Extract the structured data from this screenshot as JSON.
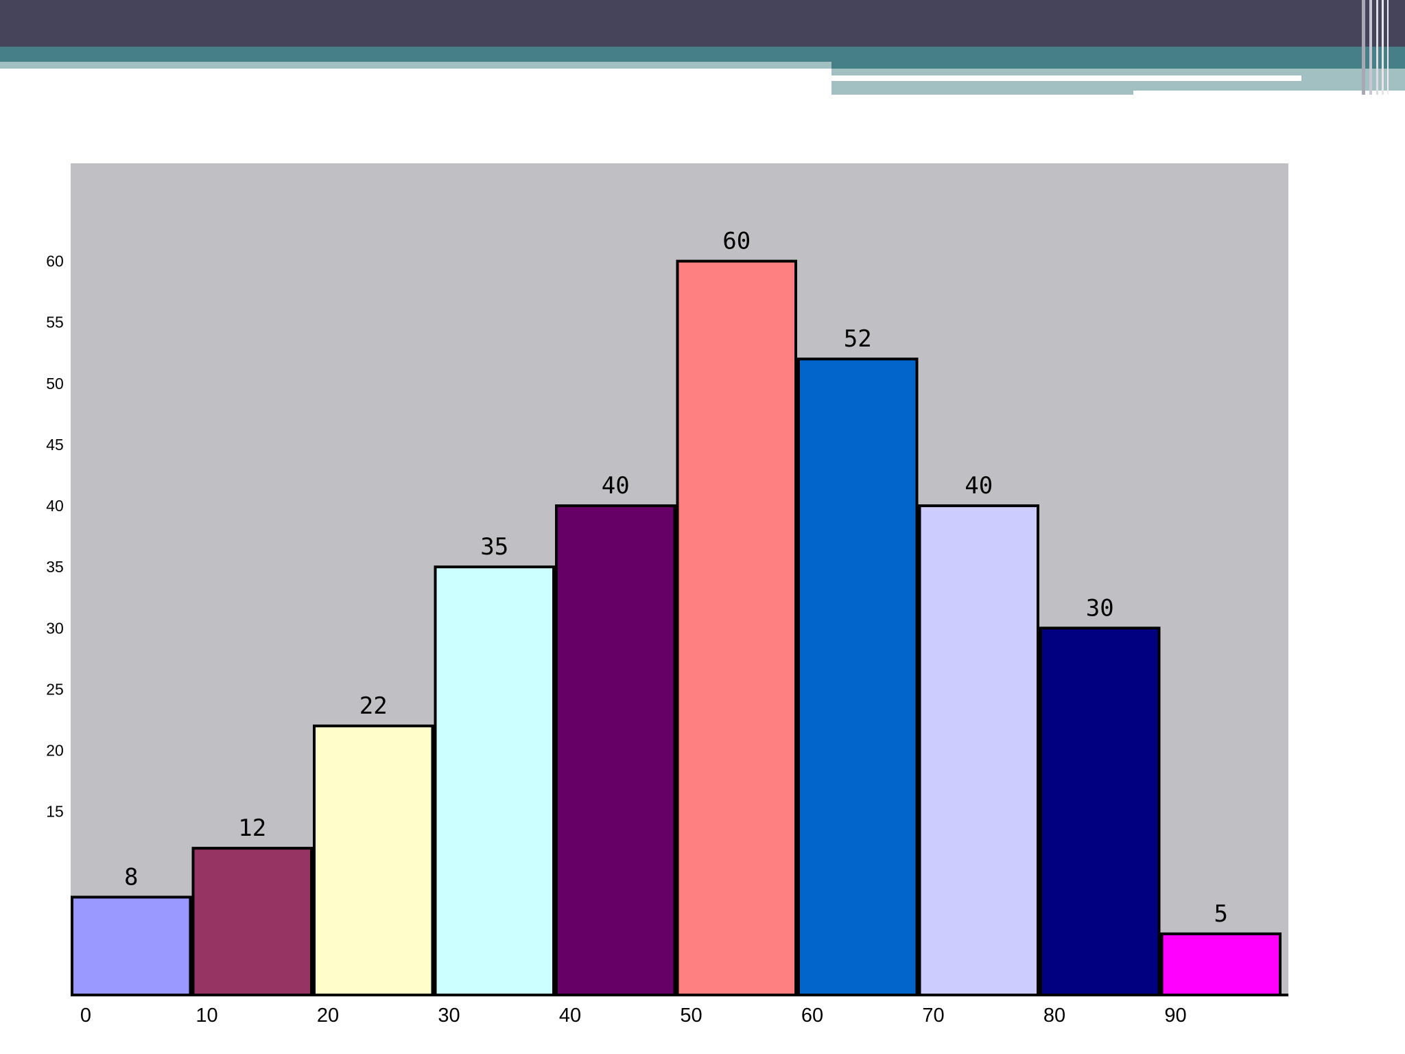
{
  "theme": {
    "header_dark": "#45445a",
    "header_teal": "#467f86",
    "header_light_teal": "#a2bfc2",
    "plot_background": "#c0bfc3"
  },
  "chart_data": {
    "type": "bar",
    "title": "",
    "xlabel": "",
    "ylabel": "",
    "categories": [
      "0",
      "10",
      "20",
      "30",
      "40",
      "50",
      "60",
      "70",
      "80",
      "90"
    ],
    "values": [
      8,
      12,
      22,
      35,
      40,
      60,
      52,
      40,
      30,
      5
    ],
    "data_labels": [
      "8",
      "12",
      "22",
      "35",
      "40",
      "60",
      "52",
      "40",
      "30",
      "5"
    ],
    "bar_colors": [
      "#9a99ff",
      "#963464",
      "#ffffcc",
      "#ccffff",
      "#660066",
      "#ff8080",
      "#0066cc",
      "#ccccff",
      "#000080",
      "#ff00ff"
    ],
    "x_tick_labels": [
      "0",
      "10",
      "20",
      "30",
      "40",
      "50",
      "60",
      "70",
      "80",
      "90"
    ],
    "y_tick_labels": [
      "15",
      "20",
      "25",
      "30",
      "35",
      "40",
      "45",
      "50",
      "55",
      "60"
    ],
    "ylim": [
      0,
      68
    ],
    "grid": false,
    "legend": "none"
  }
}
